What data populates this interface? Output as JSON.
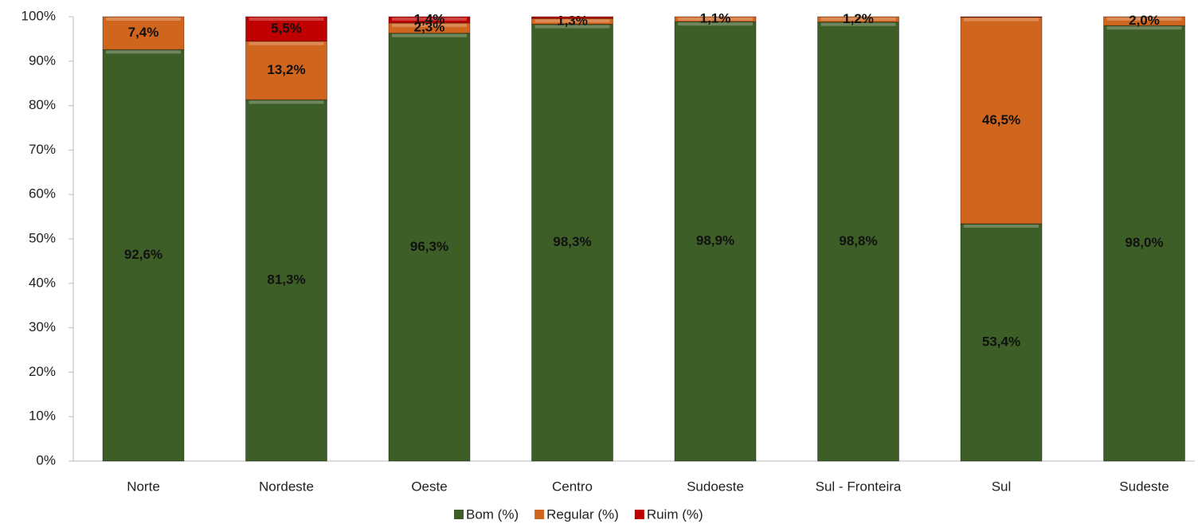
{
  "chart_data": {
    "type": "stacked_bar",
    "categories": [
      "Norte",
      "Nordeste",
      "Oeste",
      "Centro",
      "Sudoeste",
      "Sul - Fronteira",
      "Sul",
      "Sudeste"
    ],
    "series": [
      {
        "name": "Bom (%)",
        "color": "#3d5e27",
        "values": [
          92.6,
          81.3,
          96.3,
          98.3,
          98.9,
          98.8,
          53.4,
          98.0
        ],
        "value_labels": [
          "92,6%",
          "81,3%",
          "96,3%",
          "98,3%",
          "98,9%",
          "98,8%",
          "53,4%",
          "98,0%"
        ]
      },
      {
        "name": "Regular (%)",
        "color": "#d0651e",
        "values": [
          7.4,
          13.2,
          2.3,
          1.3,
          1.1,
          1.2,
          46.5,
          2.0
        ],
        "value_labels": [
          "7,4%",
          "13,2%",
          "2,3%",
          "1,3%",
          "1,1%",
          "1,2%",
          "46,5%",
          "2,0%"
        ]
      },
      {
        "name": "Ruim (%)",
        "color": "#c00000",
        "values": [
          0,
          5.5,
          1.4,
          0.4,
          0,
          0,
          0.1,
          0
        ],
        "value_labels": [
          null,
          "5,5%",
          "1,4%",
          null,
          null,
          null,
          null,
          null
        ]
      }
    ],
    "ylim": [
      0,
      100
    ],
    "yticks": [
      {
        "value": 0,
        "label": "0%"
      },
      {
        "value": 10,
        "label": "10%"
      },
      {
        "value": 20,
        "label": "20%"
      },
      {
        "value": 30,
        "label": "30%"
      },
      {
        "value": 40,
        "label": "40%"
      },
      {
        "value": 50,
        "label": "50%"
      },
      {
        "value": 60,
        "label": "60%"
      },
      {
        "value": 70,
        "label": "70%"
      },
      {
        "value": 80,
        "label": "80%"
      },
      {
        "value": 90,
        "label": "90%"
      },
      {
        "value": 100,
        "label": "100%"
      }
    ],
    "grid": false,
    "legend": "bottom"
  }
}
